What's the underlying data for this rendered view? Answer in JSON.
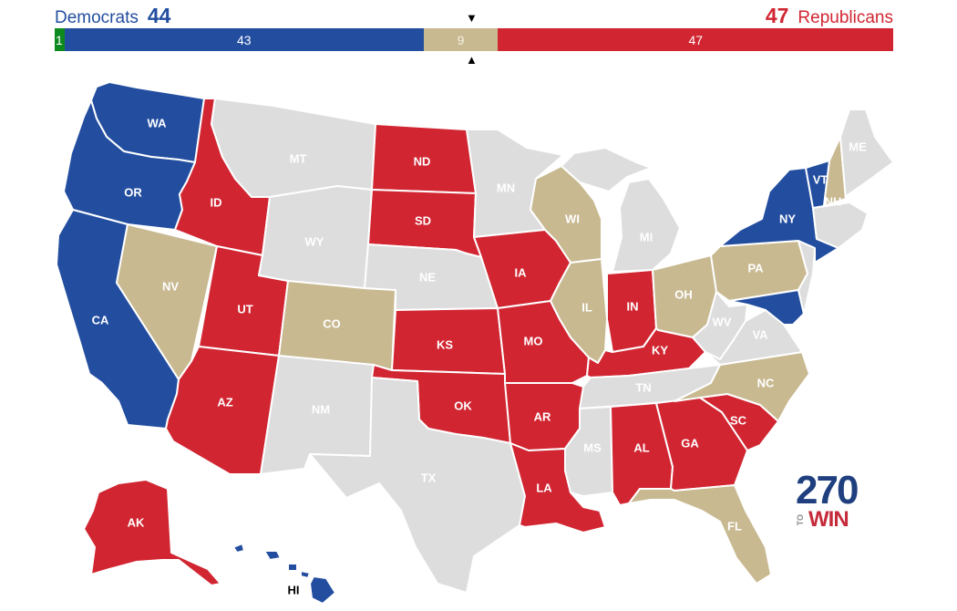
{
  "header": {
    "dem_label": "Democrats",
    "dem_total": "44",
    "rep_label": "Republicans",
    "rep_total": "47"
  },
  "bar": {
    "independent": "1",
    "democrat": "43",
    "tossup": "9",
    "republican": "47"
  },
  "colors": {
    "democrat": "#234ea0",
    "republican": "#d12632",
    "tossup": "#c8b991",
    "no_election": "#dddddd",
    "independent": "#0d8a1e"
  },
  "map": {
    "states": [
      {
        "code": "WA",
        "rating": "democrat"
      },
      {
        "code": "OR",
        "rating": "democrat"
      },
      {
        "code": "CA",
        "rating": "democrat"
      },
      {
        "code": "NV",
        "rating": "tossup"
      },
      {
        "code": "ID",
        "rating": "republican"
      },
      {
        "code": "UT",
        "rating": "republican"
      },
      {
        "code": "AZ",
        "rating": "republican"
      },
      {
        "code": "MT",
        "rating": "no_election"
      },
      {
        "code": "WY",
        "rating": "no_election"
      },
      {
        "code": "CO",
        "rating": "tossup"
      },
      {
        "code": "NM",
        "rating": "no_election"
      },
      {
        "code": "ND",
        "rating": "republican"
      },
      {
        "code": "SD",
        "rating": "republican"
      },
      {
        "code": "NE",
        "rating": "no_election"
      },
      {
        "code": "KS",
        "rating": "republican"
      },
      {
        "code": "OK",
        "rating": "republican"
      },
      {
        "code": "TX",
        "rating": "no_election"
      },
      {
        "code": "MN",
        "rating": "no_election"
      },
      {
        "code": "IA",
        "rating": "republican"
      },
      {
        "code": "MO",
        "rating": "republican"
      },
      {
        "code": "AR",
        "rating": "republican"
      },
      {
        "code": "LA",
        "rating": "republican"
      },
      {
        "code": "WI",
        "rating": "tossup"
      },
      {
        "code": "IL",
        "rating": "tossup"
      },
      {
        "code": "MS",
        "rating": "no_election"
      },
      {
        "code": "MI",
        "rating": "no_election"
      },
      {
        "code": "IN",
        "rating": "republican"
      },
      {
        "code": "KY",
        "rating": "republican"
      },
      {
        "code": "TN",
        "rating": "no_election"
      },
      {
        "code": "AL",
        "rating": "republican"
      },
      {
        "code": "GA",
        "rating": "republican"
      },
      {
        "code": "FL",
        "rating": "tossup"
      },
      {
        "code": "SC",
        "rating": "republican"
      },
      {
        "code": "NC",
        "rating": "tossup"
      },
      {
        "code": "OH",
        "rating": "tossup"
      },
      {
        "code": "WV",
        "rating": "no_election"
      },
      {
        "code": "VA",
        "rating": "no_election"
      },
      {
        "code": "PA",
        "rating": "tossup"
      },
      {
        "code": "NY",
        "rating": "democrat"
      },
      {
        "code": "VT",
        "rating": "democrat"
      },
      {
        "code": "NH",
        "rating": "tossup"
      },
      {
        "code": "ME",
        "rating": "no_election"
      },
      {
        "code": "MD",
        "rating": "democrat"
      },
      {
        "code": "AK",
        "rating": "republican"
      },
      {
        "code": "HI",
        "rating": "democrat"
      }
    ]
  },
  "logo": {
    "number": "270",
    "to": "TO",
    "win": "WIN"
  }
}
